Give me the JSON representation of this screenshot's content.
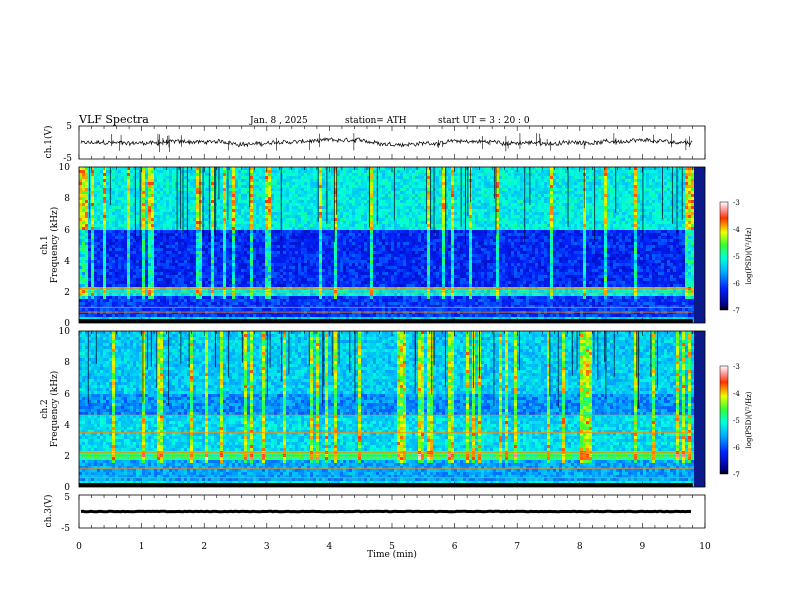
{
  "header": {
    "title": "VLF Spectra",
    "date": "Jan. 8 , 2025",
    "station": "station= ATH",
    "start": "start UT = 3 : 20 : 0"
  },
  "chart_data": [
    {
      "type": "line",
      "ylabel": "ch.1(V)",
      "ylim": [
        -5,
        5
      ],
      "yticks": [
        "5",
        "-5"
      ],
      "baseline": 0,
      "noise_amplitude": 1.2,
      "grid": false
    },
    {
      "type": "heatmap",
      "ylabel_top": "ch.1",
      "ylabel": "Frequency (kHz)",
      "ylim": [
        0,
        10
      ],
      "yticks": [
        "0",
        "2",
        "4",
        "6",
        "8",
        "10"
      ],
      "bands_khz": [
        0.7,
        1.0,
        2.0,
        2.2
      ],
      "colorbar": {
        "label": "log(PSD)(V²/Hz)",
        "range": [
          -7,
          -3
        ],
        "ticks": [
          "-3",
          "-4",
          "-5",
          "-6",
          "-7"
        ]
      }
    },
    {
      "type": "heatmap",
      "ylabel_top": "ch.2",
      "ylabel": "Frequency (kHz)",
      "ylim": [
        0,
        10
      ],
      "yticks": [
        "0",
        "2",
        "4",
        "6",
        "8",
        "10"
      ],
      "bands_khz": [
        0.6,
        1.2,
        2.0,
        2.2,
        3.5,
        4.6
      ],
      "colorbar": {
        "label": "log(PSD)(V²/Hz)",
        "range": [
          -7,
          -3
        ],
        "ticks": [
          "-3",
          "-4",
          "-5",
          "-6",
          "-7"
        ]
      }
    },
    {
      "type": "line",
      "ylabel": "ch.3(V)",
      "ylim": [
        -5,
        5
      ],
      "yticks": [
        "5",
        "-5"
      ],
      "baseline": 0,
      "noise_amplitude": 0.15,
      "grid": false
    }
  ],
  "xaxis": {
    "label": "Time (min)",
    "xlim": [
      0,
      10
    ],
    "ticks": [
      "0",
      "1",
      "2",
      "3",
      "4",
      "5",
      "6",
      "7",
      "8",
      "9",
      "10"
    ],
    "data_end": 9.8
  }
}
